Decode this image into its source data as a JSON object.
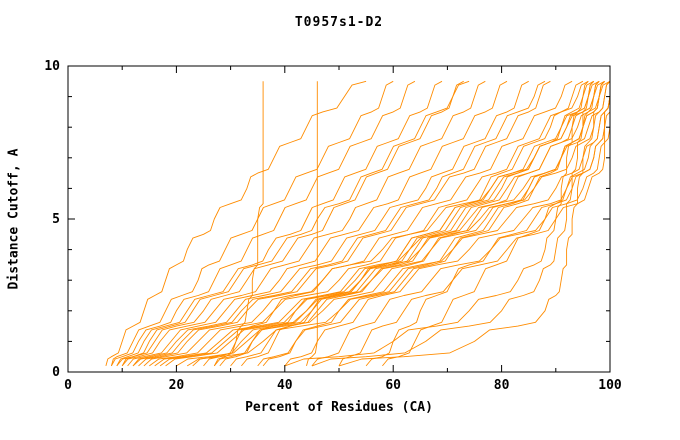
{
  "chart_data": {
    "type": "line",
    "title": "T0957s1-D2",
    "xlabel": "Percent of Residues (CA)",
    "ylabel": "Distance Cutoff, A",
    "xlim": [
      0,
      100
    ],
    "ylim": [
      0,
      10
    ],
    "grid": false,
    "legend": "none",
    "x_major_ticks": [
      0,
      20,
      40,
      60,
      80,
      100
    ],
    "x_minor_ticks": [
      10,
      30,
      50,
      70,
      90
    ],
    "y_major_ticks": [
      0,
      5,
      10
    ],
    "y_minor_ticks": [
      1,
      2,
      3,
      4,
      6,
      7,
      8,
      9
    ],
    "colors": {
      "curve": "#ff8c00",
      "axis": "#000000",
      "background": "#ffffff",
      "text": "#000000"
    },
    "cutoffs": [
      0.2,
      0.5,
      1,
      1.5,
      2,
      2.5,
      3,
      3.5,
      4,
      4.5,
      5,
      5.5,
      6,
      6.5,
      7,
      7.5,
      8,
      8.5,
      9,
      9.5
    ],
    "series": [
      [
        7,
        8,
        10,
        12,
        14,
        16,
        18,
        20,
        22,
        25,
        27,
        30,
        33,
        35,
        38,
        41,
        44,
        47,
        51,
        55
      ],
      [
        8,
        9,
        12,
        15,
        18,
        21,
        24,
        26,
        29,
        32,
        35,
        38,
        41,
        44,
        47,
        50,
        53,
        56,
        58,
        60
      ],
      [
        8,
        10,
        13,
        17,
        20,
        24,
        27,
        30,
        33,
        36,
        39,
        42,
        45,
        48,
        51,
        54,
        57,
        60,
        62,
        64
      ],
      [
        9,
        11,
        14,
        18,
        22,
        26,
        30,
        34,
        37,
        41,
        44,
        47,
        50,
        53,
        56,
        59,
        62,
        65,
        67,
        69
      ],
      [
        10,
        12,
        16,
        20,
        25,
        29,
        33,
        37,
        41,
        45,
        48,
        51,
        54,
        57,
        60,
        63,
        66,
        69,
        71,
        73
      ],
      [
        10,
        13,
        17,
        22,
        27,
        32,
        36,
        40,
        44,
        48,
        52,
        55,
        58,
        61,
        64,
        67,
        70,
        73,
        75,
        77
      ],
      [
        11,
        14,
        19,
        24,
        29,
        34,
        39,
        43,
        47,
        51,
        55,
        59,
        62,
        65,
        68,
        71,
        74,
        77,
        79,
        81
      ],
      [
        12,
        15,
        20,
        26,
        31,
        36,
        41,
        46,
        50,
        54,
        58,
        62,
        66,
        69,
        72,
        75,
        78,
        81,
        83,
        85
      ],
      [
        13,
        17,
        22,
        28,
        33,
        39,
        44,
        49,
        53,
        57,
        61,
        65,
        69,
        73,
        76,
        79,
        82,
        85,
        87,
        89
      ],
      [
        14,
        18,
        24,
        30,
        36,
        41,
        47,
        52,
        56,
        60,
        64,
        68,
        72,
        76,
        79,
        82,
        85,
        88,
        91,
        93
      ],
      [
        15,
        20,
        26,
        32,
        38,
        44,
        50,
        55,
        59,
        63,
        67,
        71,
        75,
        79,
        82,
        85,
        88,
        91,
        94,
        96
      ],
      [
        16,
        21,
        28,
        35,
        41,
        47,
        53,
        58,
        62,
        66,
        70,
        74,
        78,
        82,
        85,
        88,
        91,
        94,
        96,
        98
      ],
      [
        18,
        23,
        30,
        37,
        44,
        50,
        56,
        61,
        65,
        69,
        73,
        77,
        81,
        85,
        88,
        91,
        94,
        96,
        98,
        99
      ],
      [
        20,
        26,
        33,
        40,
        47,
        53,
        58,
        63,
        67,
        71,
        75,
        79,
        82,
        85,
        88,
        91,
        93,
        95,
        97,
        99
      ],
      [
        22,
        28,
        36,
        43,
        50,
        56,
        61,
        66,
        70,
        74,
        78,
        82,
        85,
        88,
        91,
        93,
        95,
        97,
        98,
        100
      ],
      [
        25,
        28,
        31,
        34,
        38,
        42,
        47,
        52,
        58,
        63,
        68,
        73,
        78,
        82,
        86,
        89,
        92,
        95,
        97,
        98
      ],
      [
        28,
        31,
        34,
        38,
        42,
        47,
        52,
        57,
        63,
        69,
        74,
        79,
        84,
        88,
        91,
        94,
        96,
        98,
        99,
        100
      ],
      [
        32,
        35,
        38,
        41,
        45,
        49,
        54,
        59,
        65,
        70,
        76,
        81,
        86,
        90,
        93,
        95,
        97,
        98,
        99,
        100
      ],
      [
        36,
        39,
        42,
        46,
        50,
        55,
        60,
        65,
        71,
        76,
        81,
        86,
        90,
        93,
        95,
        97,
        98,
        99,
        100,
        100
      ],
      [
        40,
        43,
        46,
        50,
        54,
        58,
        63,
        68,
        74,
        79,
        84,
        89,
        92,
        95,
        97,
        98,
        99,
        99,
        100,
        100
      ],
      [
        45,
        48,
        51,
        54,
        58,
        62,
        67,
        72,
        78,
        83,
        88,
        92,
        95,
        97,
        98,
        99,
        99,
        100,
        100,
        100
      ],
      [
        50,
        52,
        55,
        58,
        62,
        66,
        71,
        76,
        81,
        86,
        90,
        94,
        96,
        98,
        99,
        99,
        100,
        100,
        100,
        100
      ],
      [
        55,
        58,
        60,
        63,
        65,
        68,
        71,
        74,
        78,
        82,
        86,
        90,
        93,
        95,
        97,
        98,
        99,
        99,
        100,
        100
      ],
      [
        58,
        61,
        64,
        67,
        70,
        73,
        76,
        79,
        82,
        85,
        88,
        90,
        92,
        94,
        96,
        97,
        98,
        99,
        100,
        100
      ],
      [
        50,
        62,
        75,
        83,
        88,
        90,
        91,
        92,
        92,
        93,
        93,
        94,
        94,
        95,
        95,
        96,
        97,
        97,
        98,
        99
      ],
      [
        45,
        55,
        66,
        74,
        80,
        84,
        87,
        89,
        90,
        91,
        92,
        92,
        93,
        93,
        94,
        94,
        95,
        95,
        96,
        97
      ],
      [
        40,
        50,
        60,
        68,
        74,
        79,
        83,
        86,
        88,
        89,
        90,
        91,
        91,
        92,
        92,
        93,
        93,
        94,
        95,
        96
      ],
      [
        9,
        12,
        15,
        19,
        23,
        27,
        31,
        35,
        39,
        43,
        46,
        50,
        53,
        56,
        59,
        62,
        65,
        68,
        71,
        74
      ],
      [
        12,
        16,
        21,
        27,
        32,
        38,
        43,
        48,
        52,
        56,
        60,
        64,
        68,
        71,
        74,
        77,
        80,
        83,
        86,
        88
      ],
      [
        17,
        22,
        29,
        36,
        42,
        48,
        54,
        59,
        63,
        67,
        71,
        75,
        79,
        83,
        86,
        89,
        92,
        94,
        96,
        97
      ],
      [
        30,
        33,
        37,
        41,
        46,
        51,
        56,
        62,
        67,
        72,
        77,
        81,
        85,
        88,
        91,
        93,
        95,
        97,
        98,
        99
      ],
      [
        23,
        27,
        32,
        38,
        44,
        49,
        54,
        58,
        62,
        66,
        70,
        74,
        77,
        80,
        83,
        86,
        89,
        91,
        93,
        95
      ],
      [
        35,
        38,
        42,
        47,
        52,
        57,
        62,
        67,
        71,
        75,
        79,
        83,
        86,
        89,
        91,
        93,
        95,
        96,
        97,
        98
      ],
      [
        27,
        30,
        34,
        39,
        45,
        50,
        55,
        60,
        64,
        68,
        72,
        76,
        80,
        83,
        86,
        89,
        91,
        93,
        95,
        97
      ],
      [
        27,
        29,
        31,
        32,
        33,
        34,
        34,
        35,
        35,
        35,
        35,
        36,
        36,
        36,
        36,
        36,
        36,
        36,
        36,
        36
      ],
      [
        44,
        45,
        46,
        46,
        46,
        46,
        46,
        46,
        46,
        46,
        46,
        46,
        46,
        46,
        46,
        46,
        46,
        46,
        46,
        46
      ]
    ]
  }
}
